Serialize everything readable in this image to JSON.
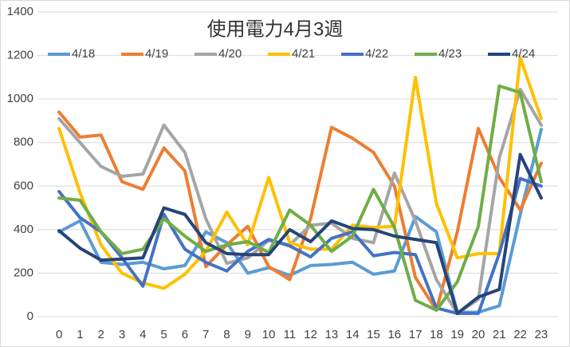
{
  "chart_data": {
    "type": "line",
    "title": "使用電力4月3週",
    "categories": [
      "0",
      "1",
      "2",
      "3",
      "4",
      "5",
      "6",
      "7",
      "8",
      "9",
      "10",
      "11",
      "12",
      "13",
      "14",
      "15",
      "16",
      "17",
      "18",
      "19",
      "20",
      "21",
      "22",
      "23"
    ],
    "ylim": [
      0,
      1400
    ],
    "yticks": [
      0,
      200,
      400,
      600,
      800,
      1000,
      1200,
      1400
    ],
    "grid": true,
    "legend": "top",
    "series": [
      {
        "name": "4/18",
        "color": "#5B9BD5",
        "values": [
          390,
          440,
          250,
          240,
          250,
          220,
          235,
          390,
          340,
          200,
          225,
          190,
          235,
          240,
          250,
          195,
          210,
          460,
          390,
          20,
          20,
          50,
          470,
          860
        ]
      },
      {
        "name": "4/19",
        "color": "#ED7D31",
        "values": [
          940,
          825,
          835,
          620,
          585,
          775,
          670,
          230,
          330,
          415,
          230,
          170,
          450,
          870,
          820,
          755,
          600,
          180,
          30,
          390,
          865,
          640,
          490,
          705
        ]
      },
      {
        "name": "4/20",
        "color": "#A5A5A5",
        "values": [
          910,
          800,
          690,
          645,
          655,
          880,
          755,
          450,
          245,
          270,
          350,
          330,
          420,
          430,
          360,
          340,
          660,
          440,
          170,
          15,
          80,
          730,
          1045,
          880
        ]
      },
      {
        "name": "4/21",
        "color": "#FFC000",
        "values": [
          865,
          570,
          330,
          200,
          155,
          130,
          195,
          300,
          480,
          330,
          640,
          340,
          310,
          310,
          420,
          410,
          415,
          1100,
          520,
          270,
          290,
          290,
          1190,
          910
        ]
      },
      {
        "name": "4/22",
        "color": "#4472C4",
        "values": [
          575,
          455,
          390,
          270,
          140,
          470,
          310,
          250,
          210,
          300,
          355,
          325,
          275,
          360,
          390,
          280,
          295,
          285,
          40,
          15,
          15,
          290,
          635,
          600
        ]
      },
      {
        "name": "4/23",
        "color": "#70AD47",
        "values": [
          545,
          535,
          390,
          290,
          310,
          450,
          370,
          300,
          330,
          345,
          295,
          490,
          420,
          300,
          370,
          585,
          410,
          75,
          30,
          160,
          415,
          1060,
          1030,
          620
        ]
      },
      {
        "name": "4/24",
        "color": "#264478",
        "values": [
          395,
          315,
          260,
          265,
          270,
          500,
          470,
          340,
          290,
          285,
          285,
          400,
          345,
          440,
          405,
          400,
          370,
          355,
          340,
          15,
          90,
          125,
          745,
          545
        ]
      }
    ]
  }
}
